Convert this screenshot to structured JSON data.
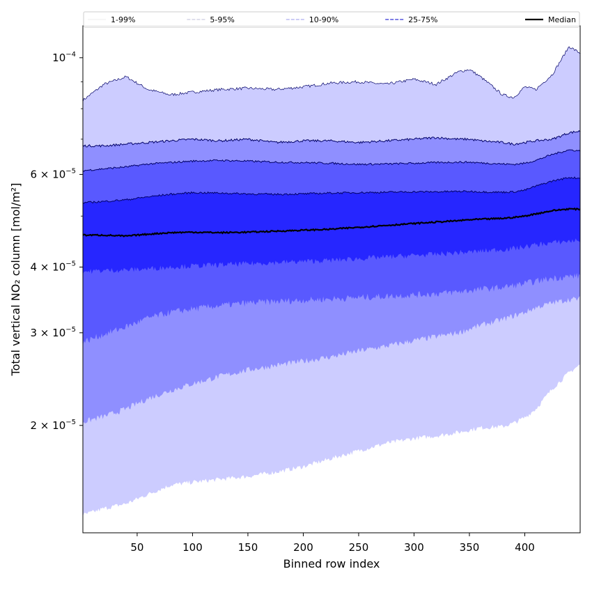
{
  "chart_data": {
    "type": "area",
    "xlabel": "Binned row index",
    "ylabel": "Total vertical NO₂ column [mol/m²]",
    "xlim": [
      1,
      450
    ],
    "ylim": [
      1.25e-05,
      0.000115
    ],
    "yscale": "log",
    "x_ticks": [
      50,
      100,
      150,
      200,
      250,
      300,
      350,
      400
    ],
    "y_ticks": [
      {
        "value": 2e-05,
        "mantissa": "2",
        "exponent": "−5"
      },
      {
        "value": 3e-05,
        "mantissa": "3",
        "exponent": "−5"
      },
      {
        "value": 4e-05,
        "mantissa": "4",
        "exponent": "−5"
      },
      {
        "value": 6e-05,
        "mantissa": "6",
        "exponent": "−5"
      },
      {
        "value": 0.0001,
        "mantissa": "",
        "exponent": "−4"
      }
    ],
    "y_tick_base": "10",
    "y_tick_times": "×",
    "x": [
      1,
      20,
      40,
      60,
      80,
      100,
      125,
      150,
      175,
      200,
      225,
      250,
      275,
      300,
      320,
      340,
      350,
      360,
      380,
      390,
      400,
      410,
      425,
      440,
      450
    ],
    "bands": [
      {
        "name": "1-99%",
        "color": "#ccccff",
        "upper": [
          8.3e-05,
          8.9e-05,
          9.2e-05,
          8.7e-05,
          8.5e-05,
          8.6e-05,
          8.7e-05,
          8.75e-05,
          8.7e-05,
          8.8e-05,
          8.95e-05,
          9e-05,
          8.9e-05,
          9.1e-05,
          8.9e-05,
          9.4e-05,
          9.5e-05,
          9.2e-05,
          8.5e-05,
          8.4e-05,
          8.8e-05,
          8.7e-05,
          9.3e-05,
          0.000105,
          0.000102
        ],
        "lower": [
          1.35e-05,
          1.39e-05,
          1.42e-05,
          1.48e-05,
          1.54e-05,
          1.56e-05,
          1.58e-05,
          1.6e-05,
          1.63e-05,
          1.67e-05,
          1.73e-05,
          1.79e-05,
          1.85e-05,
          1.89e-05,
          1.91e-05,
          1.94e-05,
          1.96e-05,
          1.98e-05,
          1.99e-05,
          2.02e-05,
          2.07e-05,
          2.15e-05,
          2.35e-05,
          2.52e-05,
          2.61e-05
        ]
      },
      {
        "name": "5-95%",
        "color": "#8f8fff",
        "upper": [
          6.8e-05,
          6.8e-05,
          6.85e-05,
          6.9e-05,
          6.95e-05,
          7e-05,
          6.95e-05,
          7e-05,
          6.9e-05,
          6.95e-05,
          6.95e-05,
          6.9e-05,
          6.95e-05,
          7e-05,
          7.05e-05,
          7e-05,
          7e-05,
          6.95e-05,
          6.9e-05,
          6.85e-05,
          6.9e-05,
          6.95e-05,
          7e-05,
          7.2e-05,
          7.25e-05
        ],
        "lower": [
          2.03e-05,
          2.08e-05,
          2.15e-05,
          2.25e-05,
          2.33e-05,
          2.4e-05,
          2.48e-05,
          2.55e-05,
          2.6e-05,
          2.65e-05,
          2.7e-05,
          2.77e-05,
          2.83e-05,
          2.9e-05,
          2.95e-05,
          3e-05,
          3.05e-05,
          3.1e-05,
          3.18e-05,
          3.23e-05,
          3.28e-05,
          3.35e-05,
          3.42e-05,
          3.47e-05,
          3.48e-05
        ]
      },
      {
        "name": "10-90%",
        "color": "#5959ff",
        "upper": [
          6.1e-05,
          6.15e-05,
          6.2e-05,
          6.28e-05,
          6.32e-05,
          6.36e-05,
          6.38e-05,
          6.36e-05,
          6.33e-05,
          6.32e-05,
          6.3e-05,
          6.27e-05,
          6.28e-05,
          6.3e-05,
          6.32e-05,
          6.33e-05,
          6.33e-05,
          6.31e-05,
          6.28e-05,
          6.27e-05,
          6.3e-05,
          6.38e-05,
          6.55e-05,
          6.68e-05,
          6.65e-05
        ],
        "lower": [
          2.88e-05,
          2.98e-05,
          3.08e-05,
          3.2e-05,
          3.28e-05,
          3.33e-05,
          3.38e-05,
          3.42e-05,
          3.44e-05,
          3.46e-05,
          3.48e-05,
          3.5e-05,
          3.52e-05,
          3.54e-05,
          3.56e-05,
          3.59e-05,
          3.61e-05,
          3.63e-05,
          3.66e-05,
          3.69e-05,
          3.72e-05,
          3.76e-05,
          3.81e-05,
          3.84e-05,
          3.85e-05
        ]
      },
      {
        "name": "25-75%",
        "color": "#2626ff",
        "upper": [
          5.3e-05,
          5.33e-05,
          5.37e-05,
          5.44e-05,
          5.5e-05,
          5.54e-05,
          5.53e-05,
          5.51e-05,
          5.5e-05,
          5.51e-05,
          5.53e-05,
          5.54e-05,
          5.55e-05,
          5.56e-05,
          5.56e-05,
          5.57e-05,
          5.57e-05,
          5.56e-05,
          5.55e-05,
          5.56e-05,
          5.6e-05,
          5.7e-05,
          5.83e-05,
          5.92e-05,
          5.9e-05
        ],
        "lower": [
          3.92e-05,
          3.94e-05,
          3.95e-05,
          3.97e-05,
          4e-05,
          4.02e-05,
          4.04e-05,
          4.06e-05,
          4.08e-05,
          4.1e-05,
          4.12e-05,
          4.15e-05,
          4.18e-05,
          4.21e-05,
          4.23e-05,
          4.26e-05,
          4.27e-05,
          4.29e-05,
          4.32e-05,
          4.34e-05,
          4.37e-05,
          4.41e-05,
          4.45e-05,
          4.48e-05,
          4.5e-05
        ]
      }
    ],
    "median": {
      "name": "Median",
      "color": "#000000",
      "values": [
        4.6e-05,
        4.6e-05,
        4.58e-05,
        4.62e-05,
        4.65e-05,
        4.66e-05,
        4.65e-05,
        4.66e-05,
        4.68e-05,
        4.7e-05,
        4.72e-05,
        4.76e-05,
        4.8e-05,
        4.84e-05,
        4.87e-05,
        4.9e-05,
        4.92e-05,
        4.93e-05,
        4.95e-05,
        4.97e-05,
        5e-05,
        5.05e-05,
        5.12e-05,
        5.16e-05,
        5.15e-05
      ]
    },
    "legend": {
      "location": "top",
      "entries": [
        {
          "label": "1-99%",
          "color": "#e0e0e0",
          "style": "solid",
          "width": 0.6
        },
        {
          "label": "5-95%",
          "color": "#aaaacc",
          "style": "dashed",
          "width": 0.7
        },
        {
          "label": "10-90%",
          "color": "#9999ee",
          "style": "dashed",
          "width": 1.1
        },
        {
          "label": "25-75%",
          "color": "#5555dd",
          "style": "dashed",
          "width": 1.4
        },
        {
          "label": "Median",
          "color": "#000000",
          "style": "solid",
          "width": 2.2
        }
      ]
    }
  }
}
